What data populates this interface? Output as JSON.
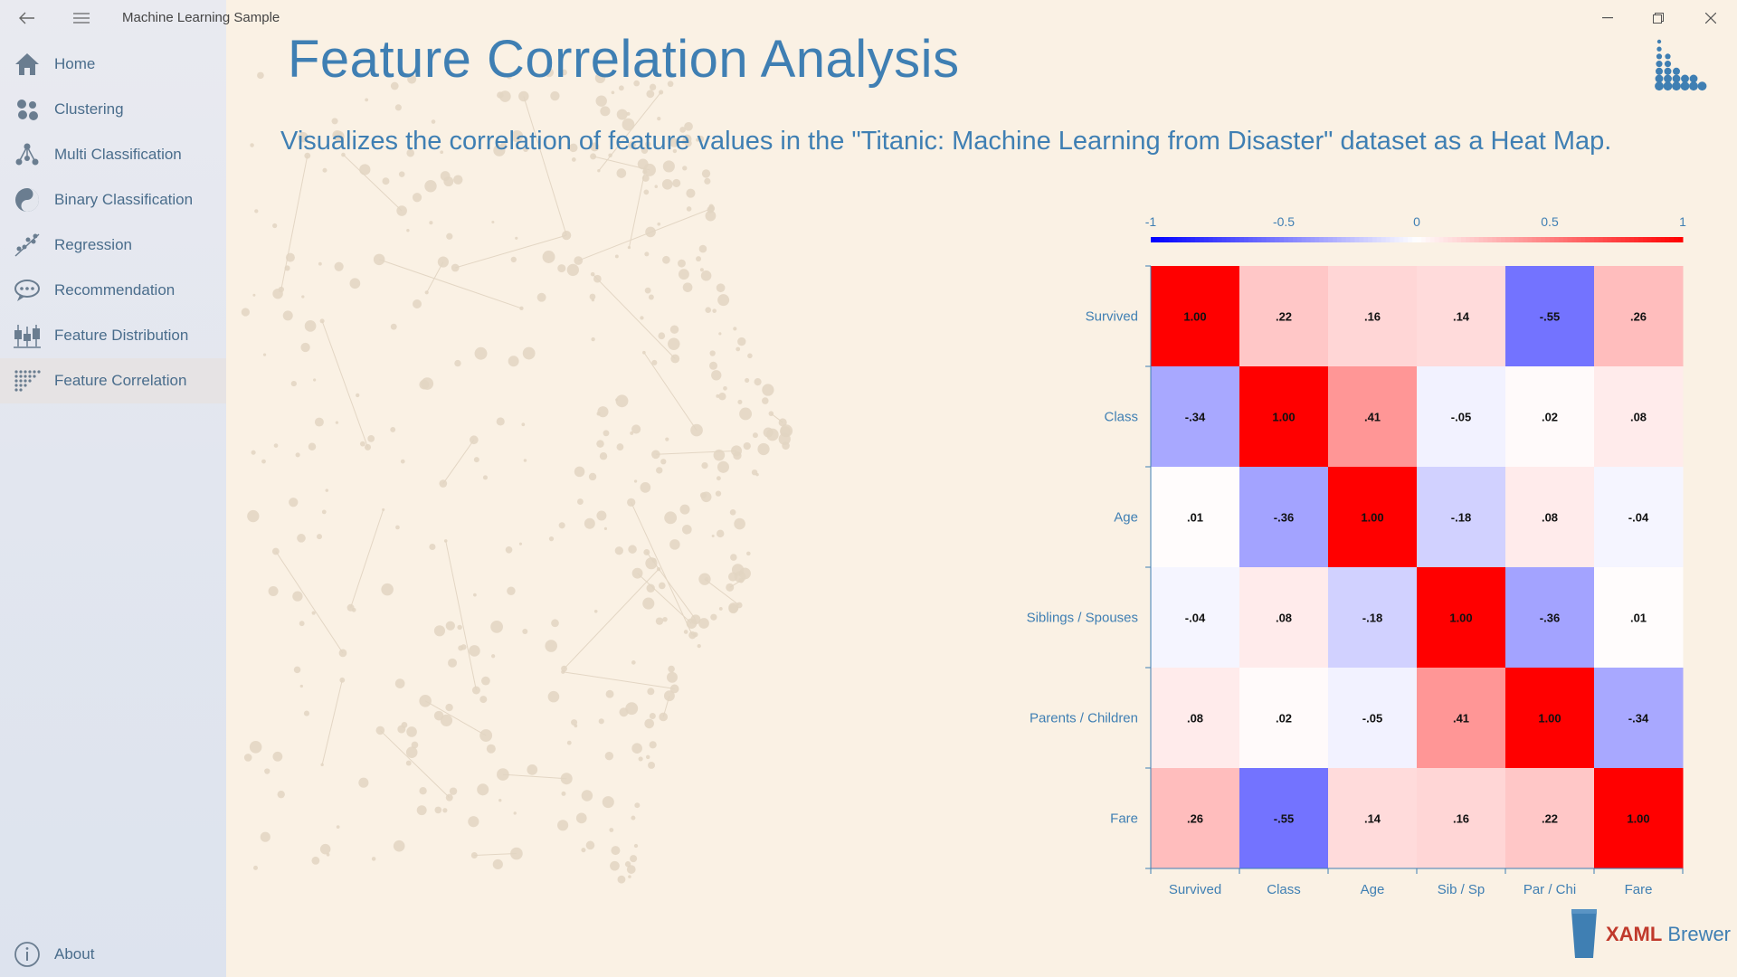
{
  "app": {
    "title": "Machine Learning Sample"
  },
  "window": {
    "minimize": "—",
    "restore": "❐",
    "close": "✕"
  },
  "nav": {
    "items": [
      {
        "label": "Home",
        "icon": "home-icon"
      },
      {
        "label": "Clustering",
        "icon": "clustering-icon"
      },
      {
        "label": "Multi Classification",
        "icon": "multi-classification-icon"
      },
      {
        "label": "Binary Classification",
        "icon": "binary-classification-icon"
      },
      {
        "label": "Regression",
        "icon": "regression-icon"
      },
      {
        "label": "Recommendation",
        "icon": "recommendation-icon"
      },
      {
        "label": "Feature Distribution",
        "icon": "feature-distribution-icon"
      },
      {
        "label": "Feature Correlation",
        "icon": "feature-correlation-icon"
      }
    ],
    "active_index": 7,
    "about": {
      "label": "About",
      "icon": "info-icon"
    }
  },
  "page": {
    "title": "Feature Correlation Analysis",
    "subtitle": "Visualizes the correlation of feature values in the \"Titanic: Machine Learning from Disaster\" dataset as a Heat Map."
  },
  "brand": {
    "xaml": "XAML",
    "brewer": "Brewer"
  },
  "colors": {
    "accent": "#3f7fb3",
    "negative": "#0000ff",
    "neutral": "#ffffff",
    "positive": "#ff0000",
    "background": "#faf1e4"
  },
  "chart_data": {
    "type": "heatmap",
    "row_labels": [
      "Survived",
      "Class",
      "Age",
      "Siblings / Spouses",
      "Parents / Children",
      "Fare"
    ],
    "col_labels": [
      "Survived",
      "Class",
      "Age",
      "Sib / Sp",
      "Par / Chi",
      "Fare"
    ],
    "values": [
      [
        1.0,
        0.22,
        0.16,
        0.14,
        -0.55,
        0.26
      ],
      [
        -0.34,
        1.0,
        0.41,
        -0.05,
        0.02,
        0.08
      ],
      [
        0.01,
        -0.36,
        1.0,
        -0.18,
        0.08,
        -0.04
      ],
      [
        -0.04,
        0.08,
        -0.18,
        1.0,
        -0.36,
        0.01
      ],
      [
        0.08,
        0.02,
        -0.05,
        0.41,
        1.0,
        -0.34
      ],
      [
        0.26,
        -0.55,
        0.14,
        0.16,
        0.22,
        1.0
      ]
    ],
    "cell_labels": [
      [
        "1.00",
        ".22",
        ".16",
        ".14",
        "-.55",
        ".26"
      ],
      [
        "-.34",
        "1.00",
        ".41",
        "-.05",
        ".02",
        ".08"
      ],
      [
        ".01",
        "-.36",
        "1.00",
        "-.18",
        ".08",
        "-.04"
      ],
      [
        "-.04",
        ".08",
        "-.18",
        "1.00",
        "-.36",
        ".01"
      ],
      [
        ".08",
        ".02",
        "-.05",
        ".41",
        "1.00",
        "-.34"
      ],
      [
        ".26",
        "-.55",
        ".14",
        ".16",
        ".22",
        "1.00"
      ]
    ],
    "color_scale": {
      "range": [
        -1,
        1
      ],
      "tick_labels": [
        "-1",
        "-0.5",
        "0",
        "0.5",
        "1"
      ],
      "placement": "top"
    }
  }
}
